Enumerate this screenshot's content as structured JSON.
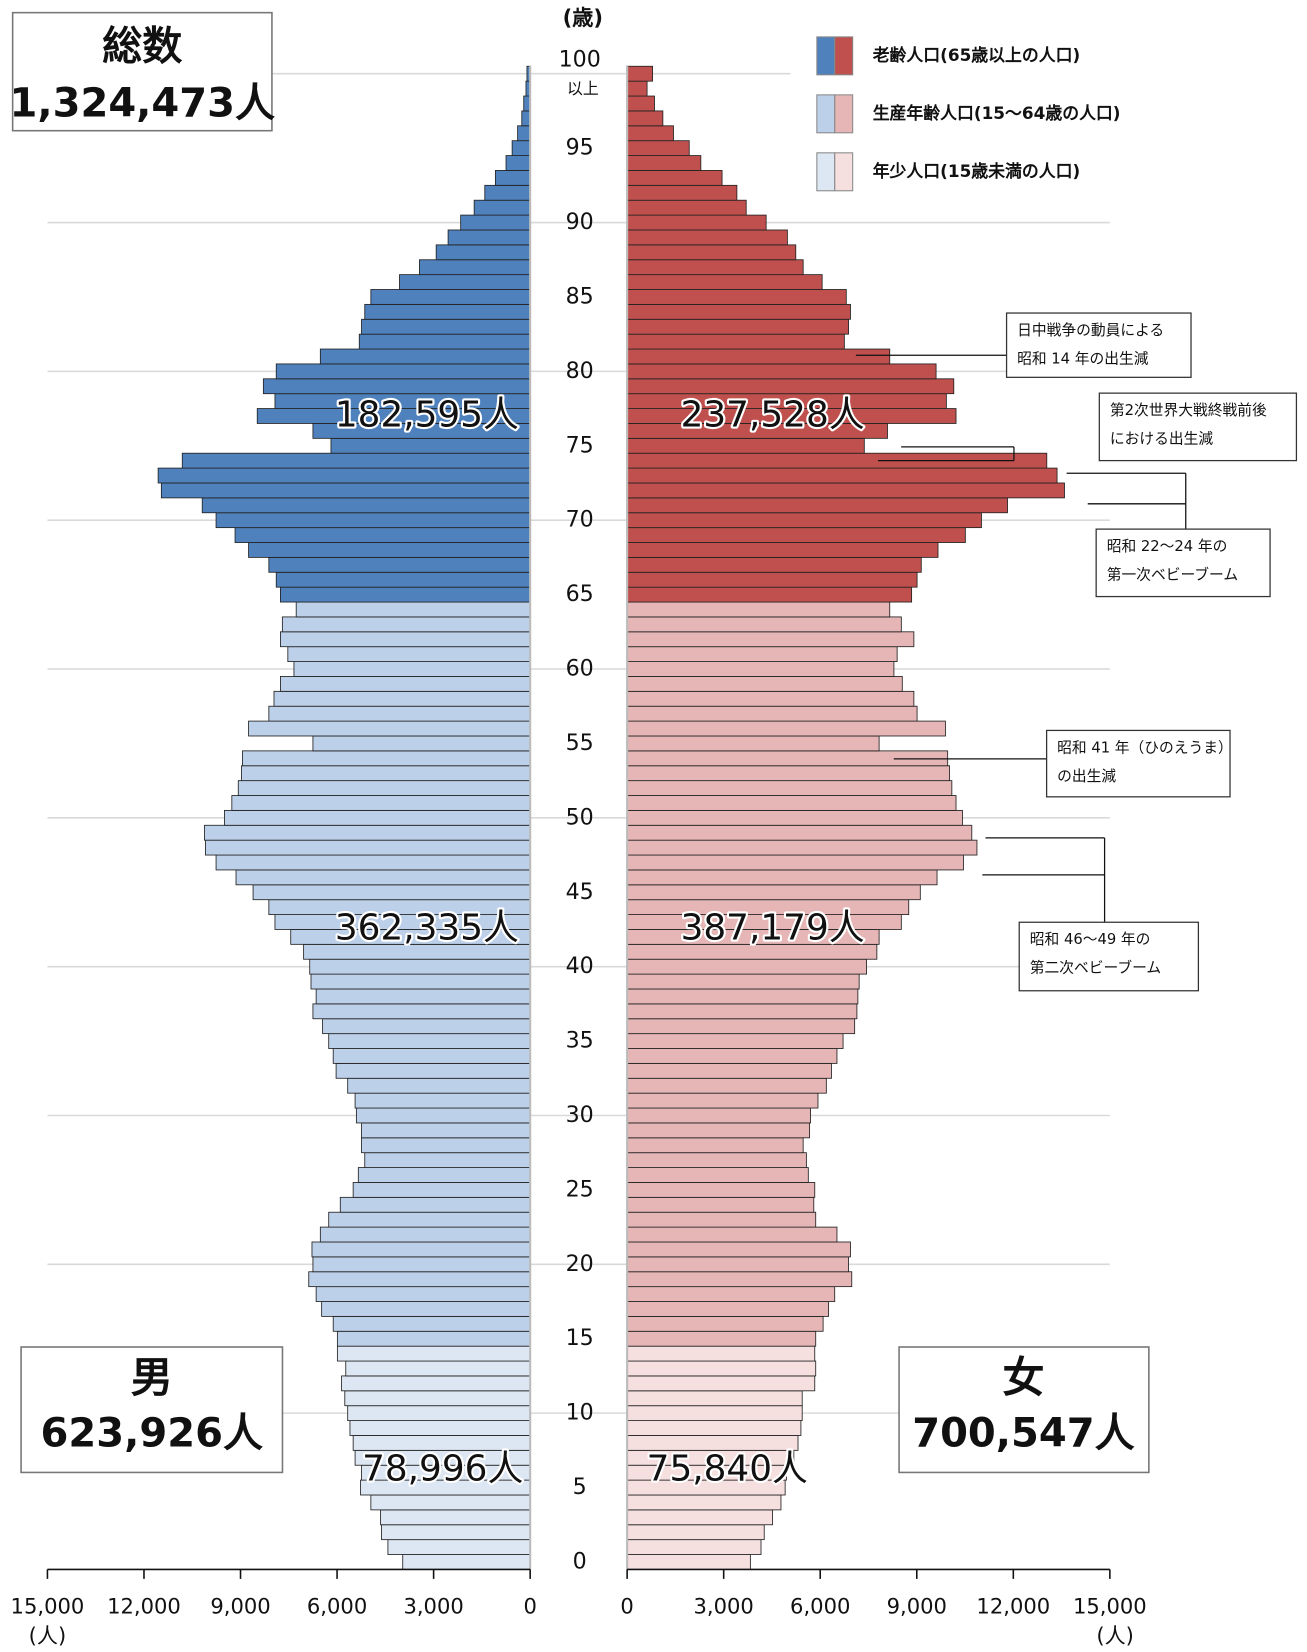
{
  "chart_data": {
    "type": "population_pyramid",
    "total": {
      "label": "総数",
      "value": 1324473,
      "value_label": "1,324,473人"
    },
    "sexes": [
      {
        "name": "男",
        "value": 623926,
        "value_label": "623,926人",
        "color": "#0070c0"
      },
      {
        "name": "女",
        "value": 700547,
        "value_label": "700,547人",
        "color": "#c00000"
      }
    ],
    "y_axis_label": "(歳)",
    "x_axis_label": "(人)",
    "age_label_suffix": "以上",
    "categories": [
      0,
      null,
      null,
      null,
      null,
      5,
      null,
      null,
      null,
      null,
      10,
      null,
      null,
      null,
      null,
      15,
      null,
      null,
      null,
      null,
      20,
      null,
      null,
      null,
      null,
      25,
      null,
      null,
      null,
      null,
      30,
      null,
      null,
      null,
      null,
      35,
      null,
      null,
      null,
      null,
      40,
      null,
      null,
      null,
      null,
      45,
      null,
      null,
      null,
      null,
      50,
      null,
      null,
      null,
      null,
      55,
      null,
      null,
      null,
      null,
      60,
      null,
      null,
      null,
      null,
      65,
      null,
      null,
      null,
      null,
      70,
      null,
      null,
      null,
      null,
      75,
      null,
      null,
      null,
      null,
      80,
      null,
      null,
      null,
      null,
      85,
      null,
      null,
      null,
      null,
      90,
      null,
      null,
      null,
      null,
      95,
      null,
      null,
      null,
      null,
      100
    ],
    "xlim": [
      0,
      15000
    ],
    "xticks": [
      0,
      {
        "value": 3000,
        "label": "3,000"
      },
      {
        "value": 6000,
        "label": "6,000"
      },
      {
        "value": 9000,
        "label": "9,000"
      },
      {
        "value": 12000,
        "label": "12,000"
      },
      {
        "value": 15000,
        "label": "15,000"
      }
    ],
    "grid": true,
    "series": [
      {
        "name": "男",
        "values": [
          3960,
          4420,
          4620,
          4650,
          4950,
          5270,
          5240,
          5440,
          5500,
          5600,
          5670,
          5760,
          5860,
          5730,
          5990,
          5990,
          6120,
          6480,
          6650,
          6880,
          6750,
          6780,
          6520,
          6260,
          5900,
          5500,
          5340,
          5140,
          5240,
          5240,
          5400,
          5440,
          5670,
          6030,
          6120,
          6260,
          6450,
          6750,
          6650,
          6810,
          6850,
          7040,
          7440,
          7930,
          8120,
          8610,
          9140,
          9760,
          10090,
          10120,
          9500,
          9270,
          9070,
          8970,
          8940,
          6750,
          8750,
          8120,
          7960,
          7760,
          7340,
          7530,
          7760,
          7700,
          7270,
          7760,
          7890,
          8120,
          8750,
          9170,
          9760,
          10190,
          11460,
          11560,
          10810,
          6190,
          6750,
          8480,
          7930,
          8290,
          7890,
          6520,
          5310,
          5240,
          5140,
          4950,
          4060,
          3440,
          2920,
          2550,
          2160,
          1740,
          1410,
          1080,
          750,
          560,
          390,
          260,
          200,
          130,
          100
        ]
      },
      {
        "name": "女",
        "values": [
          3830,
          4160,
          4260,
          4520,
          4780,
          4910,
          4950,
          5180,
          5310,
          5400,
          5440,
          5440,
          5830,
          5860,
          5830,
          5860,
          6090,
          6260,
          6450,
          6980,
          6880,
          6940,
          6520,
          5860,
          5800,
          5830,
          5630,
          5570,
          5470,
          5670,
          5700,
          5930,
          6190,
          6350,
          6520,
          6710,
          7070,
          7140,
          7170,
          7210,
          7440,
          7760,
          7830,
          8520,
          8750,
          9110,
          9630,
          10450,
          10870,
          10710,
          10420,
          10220,
          10090,
          10020,
          9960,
          7830,
          9890,
          9010,
          8910,
          8550,
          8290,
          8390,
          8910,
          8520,
          8160,
          8840,
          9010,
          9140,
          9660,
          10510,
          11010,
          11820,
          13590,
          13360,
          13040,
          7370,
          8090,
          10220,
          9920,
          10150,
          9600,
          8160,
          6750,
          6880,
          6940,
          6810,
          6060,
          5470,
          5240,
          4980,
          4320,
          3700,
          3410,
          2950,
          2290,
          1930,
          1440,
          1110,
          850,
          620,
          790
        ]
      }
    ],
    "groups": [
      {
        "name": "老齢人口(65歳以上の人口)",
        "min_age": 65,
        "colors": [
          "#4f81bd",
          "#c0504d"
        ],
        "values": [
          182595,
          237528
        ],
        "value_labels": [
          "182,595人",
          "237,528人"
        ]
      },
      {
        "name": "生産年齢人口(15～64歳の人口)",
        "min_age": 15,
        "colors": [
          "#bdd0e9",
          "#e6b6b6"
        ],
        "values": [
          362335,
          387179
        ],
        "value_labels": [
          "362,335人",
          "387,179人"
        ]
      },
      {
        "name": "年少人口(15歳未満の人口)",
        "min_age": 0,
        "colors": [
          "#dde7f3",
          "#f5dfdf"
        ],
        "values": [
          78996,
          75840
        ],
        "value_labels": [
          "78,996人",
          "75,840人"
        ]
      }
    ],
    "annotations": [
      {
        "lines": [
          "日中戦争の動員による",
          "昭和 14 年の出生減"
        ]
      },
      {
        "lines": [
          "第2次世界大戦終戦前後",
          "における出生減"
        ]
      },
      {
        "lines": [
          "昭和 22～24 年の",
          "第一次ベビーブーム"
        ]
      },
      {
        "lines": [
          "昭和 41 年（ひのえうま）",
          "の出生減"
        ]
      },
      {
        "lines": [
          "昭和 46～49 年の",
          "第二次ベビーブーム"
        ]
      }
    ]
  }
}
